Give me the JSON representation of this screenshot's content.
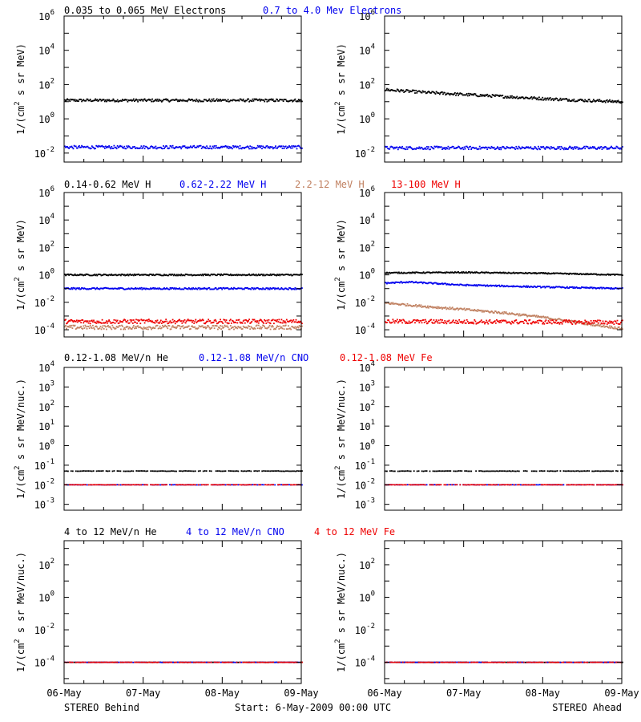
{
  "colors": {
    "black": "#000000",
    "blue": "#0000ee",
    "tan": "#c08060",
    "red": "#ee0000"
  },
  "xaxis": {
    "ticks": [
      "06-May",
      "07-May",
      "08-May",
      "09-May"
    ],
    "left_caption": "STEREO Behind",
    "center_caption": "Start:  6-May-2009 00:00 UTC",
    "right_caption": "STEREO Ahead"
  },
  "rows": [
    {
      "ylabel_pre": "1/(cm",
      "ylabel_sup": "2",
      "ylabel_post": " s sr MeV)",
      "legend": [
        {
          "text": "0.035 to 0.065 MeV Electrons",
          "color": "black"
        },
        {
          "text": "0.7 to 4.0 Mev Electrons",
          "color": "blue"
        }
      ]
    },
    {
      "ylabel_pre": "1/(cm",
      "ylabel_sup": "2",
      "ylabel_post": " s sr MeV)",
      "legend": [
        {
          "text": "0.14-0.62 MeV H",
          "color": "black"
        },
        {
          "text": "0.62-2.22 MeV H",
          "color": "blue"
        },
        {
          "text": "2.2-12 MeV H",
          "color": "tan"
        },
        {
          "text": "13-100 MeV H",
          "color": "red"
        }
      ]
    },
    {
      "ylabel_pre": "1/(cm",
      "ylabel_sup": "2",
      "ylabel_post": " s sr MeV/nuc.)",
      "legend": [
        {
          "text": "0.12-1.08 MeV/n He",
          "color": "black"
        },
        {
          "text": "0.12-1.08 MeV/n CNO",
          "color": "blue"
        },
        {
          "text": "0.12-1.08 MeV Fe",
          "color": "red"
        }
      ]
    },
    {
      "ylabel_pre": "1/(cm",
      "ylabel_sup": "2",
      "ylabel_post": " s sr MeV/nuc.)",
      "legend": [
        {
          "text": "4 to 12 MeV/n He",
          "color": "black"
        },
        {
          "text": "4 to 12 MeV/n CNO",
          "color": "blue"
        },
        {
          "text": "4 to 12 MeV Fe",
          "color": "red"
        }
      ]
    }
  ],
  "chart_data": [
    {
      "type": "scatter",
      "yscale": "log",
      "xlim_days": [
        0,
        3
      ],
      "ylim": [
        0.003,
        1000000
      ],
      "ytick_exponents": [
        -2,
        0,
        2,
        4,
        6
      ],
      "series": [
        {
          "name": "0.035 to 0.065 MeV Electrons",
          "color": "black",
          "x": [
            0,
            3
          ],
          "y": [
            12,
            12
          ],
          "spread": 0.08
        },
        {
          "name": "0.7 to 4.0 Mev Electrons",
          "color": "blue",
          "x": [
            0,
            3
          ],
          "y": [
            0.022,
            0.022
          ],
          "spread": 0.09
        }
      ]
    },
    {
      "type": "scatter",
      "yscale": "log",
      "xlim_days": [
        0,
        3
      ],
      "ylim": [
        0.003,
        1000000
      ],
      "ytick_exponents": [
        -2,
        0,
        2,
        4,
        6
      ],
      "series": [
        {
          "name": "0.035 to 0.065 MeV Electrons",
          "color": "black",
          "x": [
            0,
            0.5,
            1,
            1.5,
            2,
            2.5,
            3
          ],
          "y": [
            50,
            35,
            26,
            20,
            15,
            12,
            10
          ],
          "spread": 0.08
        },
        {
          "name": "0.7 to 4.0 Mev Electrons",
          "color": "blue",
          "x": [
            0,
            3
          ],
          "y": [
            0.02,
            0.02
          ],
          "spread": 0.09
        }
      ]
    },
    {
      "type": "scatter",
      "yscale": "log",
      "xlim_days": [
        0,
        3
      ],
      "ylim": [
        3e-05,
        1000000
      ],
      "ytick_exponents": [
        -4,
        -2,
        0,
        2,
        4,
        6
      ],
      "series": [
        {
          "name": "0.14-0.62 MeV H",
          "color": "black",
          "x": [
            0,
            3
          ],
          "y": [
            1.0,
            1.0
          ],
          "spread": 0.05
        },
        {
          "name": "0.62-2.22 MeV H",
          "color": "blue",
          "x": [
            0,
            3
          ],
          "y": [
            0.1,
            0.1
          ],
          "spread": 0.06
        },
        {
          "name": "2.2-12 MeV H",
          "color": "tan",
          "x": [
            0,
            3
          ],
          "y": [
            0.00015,
            0.00015
          ],
          "spread": 0.15
        },
        {
          "name": "13-100 MeV H",
          "color": "red",
          "x": [
            0,
            3
          ],
          "y": [
            0.0004,
            0.0004
          ],
          "spread": 0.15
        }
      ]
    },
    {
      "type": "scatter",
      "yscale": "log",
      "xlim_days": [
        0,
        3
      ],
      "ylim": [
        3e-05,
        1000000
      ],
      "ytick_exponents": [
        -4,
        -2,
        0,
        2,
        4,
        6
      ],
      "series": [
        {
          "name": "0.14-0.62 MeV H",
          "color": "black",
          "x": [
            0,
            1,
            2,
            3
          ],
          "y": [
            1.4,
            1.5,
            1.3,
            1.0
          ],
          "spread": 0.04
        },
        {
          "name": "0.62-2.22 MeV H",
          "color": "blue",
          "x": [
            0,
            0.3,
            1,
            2,
            3
          ],
          "y": [
            0.25,
            0.3,
            0.18,
            0.13,
            0.1
          ],
          "spread": 0.05
        },
        {
          "name": "2.2-12 MeV H",
          "color": "tan",
          "x": [
            0,
            0.5,
            1,
            1.5,
            2,
            2.5,
            3
          ],
          "y": [
            0.009,
            0.005,
            0.003,
            0.0017,
            0.0008,
            0.0003,
            0.00012
          ],
          "spread": 0.08
        },
        {
          "name": "13-100 MeV H",
          "color": "red",
          "x": [
            0,
            3
          ],
          "y": [
            0.0004,
            0.00035
          ],
          "spread": 0.15
        }
      ]
    },
    {
      "type": "scatter",
      "yscale": "log",
      "xlim_days": [
        0,
        3
      ],
      "ylim": [
        0.0005,
        10000
      ],
      "ytick_exponents": [
        -3,
        -2,
        -1,
        0,
        1,
        2,
        3,
        4
      ],
      "series": [
        {
          "name": "0.12-1.08 MeV/n He",
          "color": "black",
          "x": [
            0,
            3
          ],
          "y": [
            0.05,
            0.05
          ],
          "spread": 0.01
        },
        {
          "name": "0.12-1.08 MeV/n CNO",
          "color": "blue",
          "x": [
            0,
            3
          ],
          "y": [
            0.01,
            0.01
          ],
          "spread": 0.005
        },
        {
          "name": "0.12-1.08 MeV Fe",
          "color": "red",
          "x": [
            0,
            3
          ],
          "y": [
            0.01,
            0.01
          ],
          "spread": 0.005
        }
      ]
    },
    {
      "type": "scatter",
      "yscale": "log",
      "xlim_days": [
        0,
        3
      ],
      "ylim": [
        0.0005,
        10000
      ],
      "ytick_exponents": [
        -3,
        -2,
        -1,
        0,
        1,
        2,
        3,
        4
      ],
      "series": [
        {
          "name": "0.12-1.08 MeV/n He",
          "color": "black",
          "x": [
            0,
            3
          ],
          "y": [
            0.05,
            0.05
          ],
          "spread": 0.01
        },
        {
          "name": "0.12-1.08 MeV/n CNO",
          "color": "blue",
          "x": [
            0,
            3
          ],
          "y": [
            0.01,
            0.01
          ],
          "spread": 0.005
        },
        {
          "name": "0.12-1.08 MeV Fe",
          "color": "red",
          "x": [
            0,
            3
          ],
          "y": [
            0.01,
            0.01
          ],
          "spread": 0.005
        }
      ]
    },
    {
      "type": "scatter",
      "yscale": "log",
      "xlim_days": [
        0,
        3
      ],
      "ylim": [
        5e-06,
        3000
      ],
      "ytick_exponents": [
        -4,
        -2,
        0,
        2
      ],
      "series": [
        {
          "name": "4 to 12 MeV/n He",
          "color": "black",
          "x": [
            0,
            3
          ],
          "y": [
            0.0001,
            0.0001
          ],
          "spread": 0.005
        },
        {
          "name": "4 to 12 MeV/n CNO",
          "color": "blue",
          "x": [
            0,
            3
          ],
          "y": [
            0.0001,
            0.0001
          ],
          "spread": 0.005
        },
        {
          "name": "4 to 12 MeV Fe",
          "color": "red",
          "x": [
            0,
            3
          ],
          "y": [
            0.0001,
            0.0001
          ],
          "spread": 0.005
        }
      ]
    },
    {
      "type": "scatter",
      "yscale": "log",
      "xlim_days": [
        0,
        3
      ],
      "ylim": [
        5e-06,
        3000
      ],
      "ytick_exponents": [
        -4,
        -2,
        0,
        2
      ],
      "series": [
        {
          "name": "4 to 12 MeV/n He",
          "color": "black",
          "x": [
            0,
            3
          ],
          "y": [
            0.0001,
            0.0001
          ],
          "spread": 0.005
        },
        {
          "name": "4 to 12 MeV/n CNO",
          "color": "blue",
          "x": [
            0,
            3
          ],
          "y": [
            0.0001,
            0.0001
          ],
          "spread": 0.005
        },
        {
          "name": "4 to 12 MeV Fe",
          "color": "red",
          "x": [
            0,
            3
          ],
          "y": [
            0.0001,
            0.0001
          ],
          "spread": 0.005
        }
      ]
    }
  ]
}
